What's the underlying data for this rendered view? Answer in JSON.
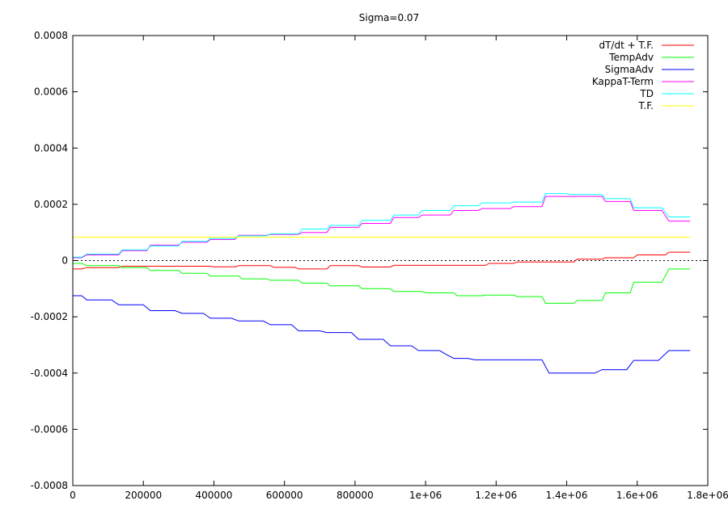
{
  "chart_data": {
    "type": "line",
    "title": "Sigma=0.07",
    "xlabel": "",
    "ylabel": "",
    "xlim": [
      0,
      1800000
    ],
    "ylim": [
      -0.0008,
      0.0008
    ],
    "x_ticks": [
      {
        "value": 0,
        "label": "0"
      },
      {
        "value": 200000,
        "label": "200000"
      },
      {
        "value": 400000,
        "label": "400000"
      },
      {
        "value": 600000,
        "label": "600000"
      },
      {
        "value": 800000,
        "label": "800000"
      },
      {
        "value": 1000000,
        "label": "1e+06"
      },
      {
        "value": 1200000,
        "label": "1.2e+06"
      },
      {
        "value": 1400000,
        "label": "1.4e+06"
      },
      {
        "value": 1600000,
        "label": "1.6e+06"
      },
      {
        "value": 1800000,
        "label": "1.8e+06"
      }
    ],
    "y_ticks": [
      {
        "value": 0.0008,
        "label": "0.0008"
      },
      {
        "value": 0.0006,
        "label": "0.0006"
      },
      {
        "value": 0.0004,
        "label": "0.0004"
      },
      {
        "value": 0.0002,
        "label": "0.0002"
      },
      {
        "value": 0,
        "label": "0"
      },
      {
        "value": -0.0002,
        "label": "-0.0002"
      },
      {
        "value": -0.0004,
        "label": "-0.0004"
      },
      {
        "value": -0.0006,
        "label": "-0.0006"
      },
      {
        "value": -0.0008,
        "label": "-0.0008"
      }
    ],
    "zero_line": true,
    "grid": false,
    "legend_position": "top-right",
    "series": [
      {
        "name": "dT/dt + T.F.",
        "color": "#ff0000",
        "points": [
          [
            0,
            -3e-05
          ],
          [
            25000,
            -3e-05
          ],
          [
            40000,
            -2.5e-05
          ],
          [
            130000,
            -2.5e-05
          ],
          [
            140000,
            -2e-05
          ],
          [
            390000,
            -2e-05
          ],
          [
            400000,
            -2.2e-05
          ],
          [
            460000,
            -2.2e-05
          ],
          [
            470000,
            -1.8e-05
          ],
          [
            560000,
            -1.8e-05
          ],
          [
            570000,
            -2.4e-05
          ],
          [
            630000,
            -2.4e-05
          ],
          [
            640000,
            -3e-05
          ],
          [
            720000,
            -3e-05
          ],
          [
            730000,
            -1.8e-05
          ],
          [
            810000,
            -1.8e-05
          ],
          [
            820000,
            -2.3e-05
          ],
          [
            900000,
            -2.3e-05
          ],
          [
            910000,
            -1.7e-05
          ],
          [
            1170000,
            -1.7e-05
          ],
          [
            1180000,
            -1e-05
          ],
          [
            1250000,
            -1e-05
          ],
          [
            1260000,
            -5e-06
          ],
          [
            1420000,
            -5e-06
          ],
          [
            1430000,
            5e-06
          ],
          [
            1500000,
            5e-06
          ],
          [
            1510000,
            1e-05
          ],
          [
            1590000,
            1e-05
          ],
          [
            1600000,
            2e-05
          ],
          [
            1680000,
            2e-05
          ],
          [
            1690000,
            3e-05
          ],
          [
            1750000,
            3e-05
          ]
        ]
      },
      {
        "name": "TempAdv",
        "color": "#00ff00",
        "points": [
          [
            0,
            -1e-05
          ],
          [
            25000,
            -1e-05
          ],
          [
            40000,
            -1.8e-05
          ],
          [
            130000,
            -1.8e-05
          ],
          [
            140000,
            -2.5e-05
          ],
          [
            210000,
            -2.5e-05
          ],
          [
            220000,
            -3.5e-05
          ],
          [
            300000,
            -3.5e-05
          ],
          [
            310000,
            -4.5e-05
          ],
          [
            380000,
            -4.5e-05
          ],
          [
            390000,
            -5.5e-05
          ],
          [
            470000,
            -5.5e-05
          ],
          [
            480000,
            -6.5e-05
          ],
          [
            550000,
            -6.5e-05
          ],
          [
            560000,
            -7e-05
          ],
          [
            640000,
            -7e-05
          ],
          [
            650000,
            -8e-05
          ],
          [
            720000,
            -8e-05
          ],
          [
            730000,
            -9e-05
          ],
          [
            810000,
            -9e-05
          ],
          [
            820000,
            -0.0001
          ],
          [
            900000,
            -0.0001
          ],
          [
            910000,
            -0.00011
          ],
          [
            990000,
            -0.00011
          ],
          [
            1000000,
            -0.000115
          ],
          [
            1080000,
            -0.000115
          ],
          [
            1090000,
            -0.000125
          ],
          [
            1160000,
            -0.000125
          ],
          [
            1170000,
            -0.000123
          ],
          [
            1250000,
            -0.000123
          ],
          [
            1260000,
            -0.000128
          ],
          [
            1330000,
            -0.000128
          ],
          [
            1340000,
            -0.000152
          ],
          [
            1420000,
            -0.000152
          ],
          [
            1430000,
            -0.000142
          ],
          [
            1500000,
            -0.000142
          ],
          [
            1510000,
            -0.000115
          ],
          [
            1580000,
            -0.000115
          ],
          [
            1590000,
            -7.7e-05
          ],
          [
            1670000,
            -7.7e-05
          ],
          [
            1690000,
            -3e-05
          ],
          [
            1750000,
            -3e-05
          ]
        ]
      },
      {
        "name": "SigmaAdv",
        "color": "#0000ff",
        "points": [
          [
            0,
            -0.000125
          ],
          [
            25000,
            -0.000125
          ],
          [
            40000,
            -0.00014
          ],
          [
            110000,
            -0.00014
          ],
          [
            130000,
            -0.000157
          ],
          [
            200000,
            -0.000157
          ],
          [
            220000,
            -0.000178
          ],
          [
            290000,
            -0.000178
          ],
          [
            310000,
            -0.000188
          ],
          [
            370000,
            -0.000188
          ],
          [
            390000,
            -0.000205
          ],
          [
            450000,
            -0.000205
          ],
          [
            470000,
            -0.000215
          ],
          [
            540000,
            -0.000215
          ],
          [
            560000,
            -0.000228
          ],
          [
            620000,
            -0.000228
          ],
          [
            640000,
            -0.00025
          ],
          [
            700000,
            -0.00025
          ],
          [
            720000,
            -0.000256
          ],
          [
            790000,
            -0.000256
          ],
          [
            810000,
            -0.00028
          ],
          [
            880000,
            -0.00028
          ],
          [
            900000,
            -0.000303
          ],
          [
            960000,
            -0.000303
          ],
          [
            980000,
            -0.00032
          ],
          [
            1040000,
            -0.00032
          ],
          [
            1060000,
            -0.000335
          ],
          [
            1080000,
            -0.000348
          ],
          [
            1120000,
            -0.000348
          ],
          [
            1140000,
            -0.000353
          ],
          [
            1330000,
            -0.000353
          ],
          [
            1350000,
            -0.0004
          ],
          [
            1480000,
            -0.0004
          ],
          [
            1500000,
            -0.000388
          ],
          [
            1570000,
            -0.000388
          ],
          [
            1590000,
            -0.000355
          ],
          [
            1660000,
            -0.000355
          ],
          [
            1690000,
            -0.00032
          ],
          [
            1750000,
            -0.00032
          ]
        ]
      },
      {
        "name": "KappaT-Term",
        "color": "#ff00ff",
        "points": [
          [
            0,
            1e-05
          ],
          [
            25000,
            1e-05
          ],
          [
            40000,
            2e-05
          ],
          [
            130000,
            2e-05
          ],
          [
            140000,
            3.5e-05
          ],
          [
            210000,
            3.5e-05
          ],
          [
            220000,
            5.5e-05
          ],
          [
            300000,
            5.5e-05
          ],
          [
            310000,
            6.5e-05
          ],
          [
            380000,
            6.5e-05
          ],
          [
            390000,
            7.5e-05
          ],
          [
            460000,
            7.5e-05
          ],
          [
            470000,
            9e-05
          ],
          [
            550000,
            9e-05
          ],
          [
            560000,
            9.3e-05
          ],
          [
            640000,
            9.3e-05
          ],
          [
            650000,
            0.0001
          ],
          [
            720000,
            0.0001
          ],
          [
            730000,
            0.000118
          ],
          [
            810000,
            0.000118
          ],
          [
            820000,
            0.000132
          ],
          [
            900000,
            0.000132
          ],
          [
            910000,
            0.000153
          ],
          [
            980000,
            0.000153
          ],
          [
            990000,
            0.000162
          ],
          [
            1070000,
            0.000162
          ],
          [
            1080000,
            0.000178
          ],
          [
            1150000,
            0.000178
          ],
          [
            1160000,
            0.000185
          ],
          [
            1240000,
            0.000185
          ],
          [
            1250000,
            0.000192
          ],
          [
            1330000,
            0.000192
          ],
          [
            1340000,
            0.000228
          ],
          [
            1500000,
            0.000228
          ],
          [
            1510000,
            0.00021
          ],
          [
            1580000,
            0.00021
          ],
          [
            1590000,
            0.000178
          ],
          [
            1670000,
            0.000178
          ],
          [
            1690000,
            0.00014
          ],
          [
            1750000,
            0.00014
          ]
        ]
      },
      {
        "name": "TD",
        "color": "#00ffff",
        "points": [
          [
            0,
            1.2e-05
          ],
          [
            25000,
            1.2e-05
          ],
          [
            40000,
            2.3e-05
          ],
          [
            130000,
            2.3e-05
          ],
          [
            140000,
            3.8e-05
          ],
          [
            210000,
            3.8e-05
          ],
          [
            220000,
            5.2e-05
          ],
          [
            300000,
            5.2e-05
          ],
          [
            310000,
            6.8e-05
          ],
          [
            380000,
            6.8e-05
          ],
          [
            390000,
            7.8e-05
          ],
          [
            460000,
            7.8e-05
          ],
          [
            470000,
            8.8e-05
          ],
          [
            550000,
            8.8e-05
          ],
          [
            560000,
            9.5e-05
          ],
          [
            640000,
            9.5e-05
          ],
          [
            650000,
            0.000112
          ],
          [
            720000,
            0.000112
          ],
          [
            730000,
            0.000125
          ],
          [
            810000,
            0.000125
          ],
          [
            820000,
            0.000143
          ],
          [
            900000,
            0.000143
          ],
          [
            910000,
            0.000162
          ],
          [
            980000,
            0.000162
          ],
          [
            990000,
            0.000178
          ],
          [
            1070000,
            0.000178
          ],
          [
            1080000,
            0.000195
          ],
          [
            1150000,
            0.000195
          ],
          [
            1160000,
            0.000205
          ],
          [
            1240000,
            0.000205
          ],
          [
            1250000,
            0.000208
          ],
          [
            1330000,
            0.000208
          ],
          [
            1340000,
            0.000238
          ],
          [
            1400000,
            0.000238
          ],
          [
            1410000,
            0.000235
          ],
          [
            1500000,
            0.000235
          ],
          [
            1510000,
            0.00022
          ],
          [
            1580000,
            0.00022
          ],
          [
            1590000,
            0.000188
          ],
          [
            1670000,
            0.000188
          ],
          [
            1690000,
            0.000155
          ],
          [
            1750000,
            0.000155
          ]
        ]
      },
      {
        "name": "T.F.",
        "color": "#ffff00",
        "points": [
          [
            0,
            8.3e-05
          ],
          [
            1750000,
            8.3e-05
          ]
        ]
      }
    ]
  }
}
